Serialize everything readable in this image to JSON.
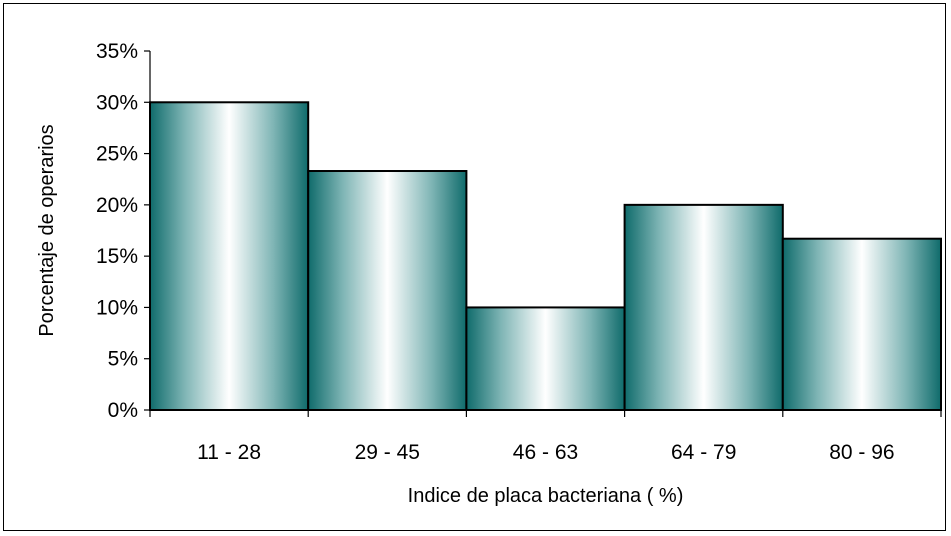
{
  "chart_data": {
    "type": "bar",
    "title": "",
    "xlabel": "Indice de placa bacteriana ( %)",
    "ylabel": "Porcentaje de operarios",
    "categories": [
      "11 - 28",
      "29 - 45",
      "46 - 63",
      "64 - 79",
      "80 - 96"
    ],
    "values": [
      30.0,
      23.3,
      10.0,
      20.0,
      16.7
    ],
    "ylim": [
      0,
      35
    ],
    "yticks": [
      0,
      5,
      10,
      15,
      20,
      25,
      30,
      35
    ],
    "ytick_labels": [
      "0%",
      "5%",
      "10%",
      "15%",
      "20%",
      "25%",
      "30%",
      "35%"
    ],
    "grid": false,
    "legend": "none",
    "colors": {
      "bar_edge": "#0f6b6b",
      "bar_center": "#ffffff",
      "outline": "#000000"
    }
  }
}
